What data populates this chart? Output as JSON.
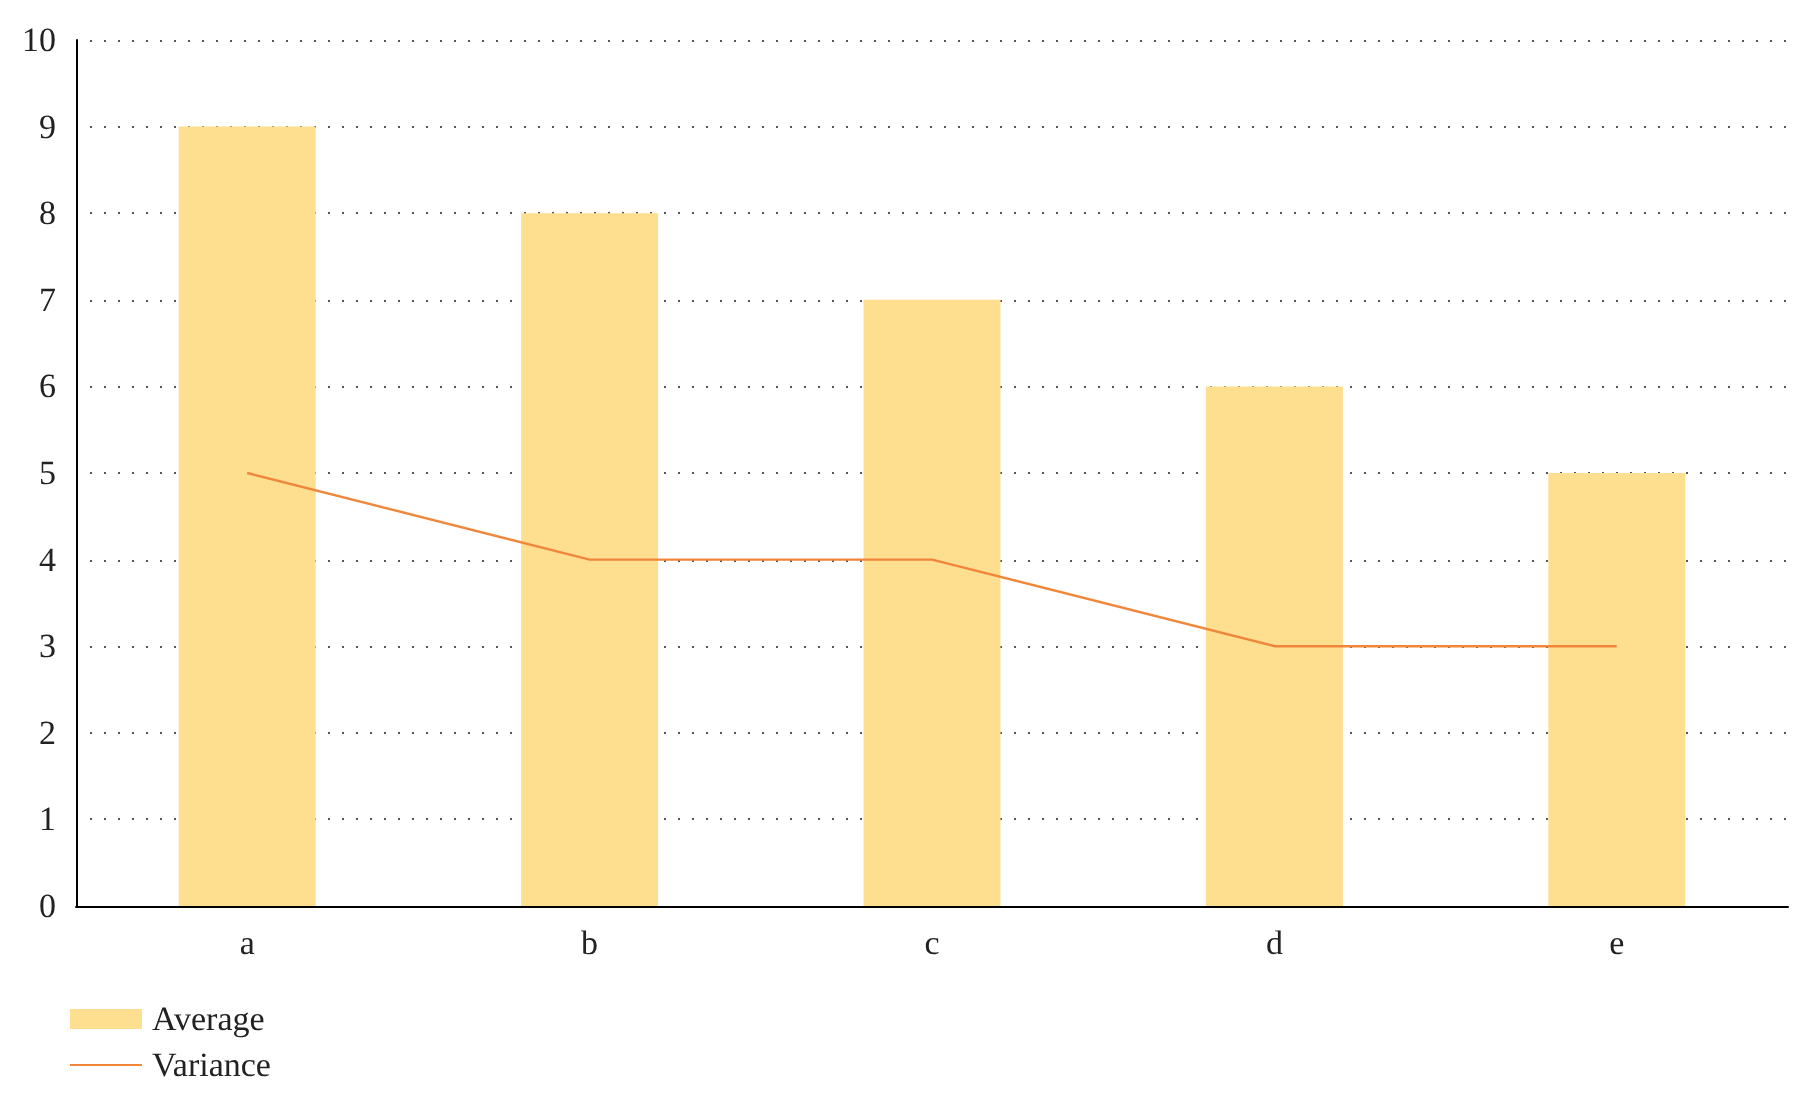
{
  "chart_data": {
    "type": "bar",
    "categories": [
      "a",
      "b",
      "c",
      "d",
      "e"
    ],
    "series": [
      {
        "name": "Average",
        "color": "#fddf8f",
        "values": [
          9,
          8,
          7,
          6,
          5
        ]
      },
      {
        "name": "Variance",
        "type": "line",
        "color": "#f0863a",
        "values": [
          5,
          4,
          4,
          3,
          3
        ]
      }
    ],
    "ylim": [
      0,
      10
    ],
    "yticks": [
      0,
      1,
      2,
      3,
      4,
      5,
      6,
      7,
      8,
      9,
      10
    ],
    "grid": "y",
    "line_style": "solid",
    "marker": "none",
    "legend": "bottom left"
  }
}
